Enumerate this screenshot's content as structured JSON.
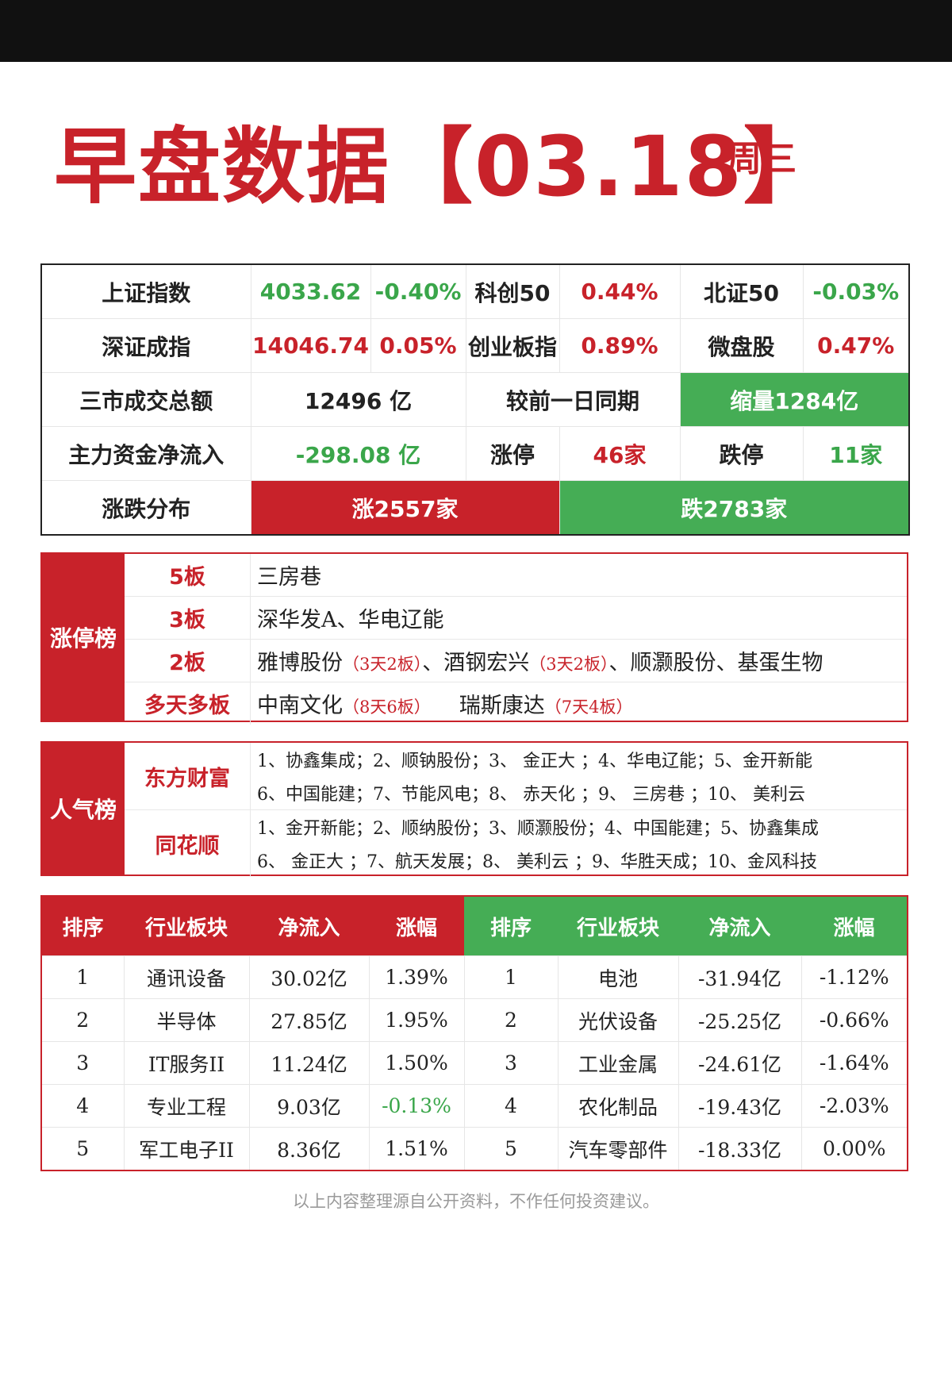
{
  "header": {
    "title": "早盘数据【03.18】",
    "weekday": "周三"
  },
  "market": {
    "row1": [
      {
        "label": "上证指数",
        "value": "4033.62",
        "change": "-0.40%"
      },
      {
        "label": "科创50",
        "change": "0.44%"
      },
      {
        "label": "北证50",
        "change": "-0.03%"
      }
    ],
    "row2": [
      {
        "label": "深证成指",
        "value": "14046.74",
        "change": "0.05%"
      },
      {
        "label": "创业板指",
        "change": "0.89%"
      },
      {
        "label": "微盘股",
        "change": "0.47%"
      }
    ],
    "turnover": {
      "label": "三市成交总额",
      "value": "12496 亿",
      "compare_label": "较前一日同期",
      "compare_value": "缩量1284亿"
    },
    "flow": {
      "label": "主力资金净流入",
      "value": "-298.08 亿",
      "up_label": "涨停",
      "up_value": "46家",
      "down_label": "跌停",
      "down_value": "11家"
    },
    "distribution": {
      "label": "涨跌分布",
      "up": "涨2557家",
      "down": "跌2783家"
    },
    "colors": {
      "up": "#c8222a",
      "down": "#3aa64a"
    }
  },
  "limit_up": {
    "title": "涨停榜",
    "rows": [
      {
        "label": "5板",
        "items": "三房巷"
      },
      {
        "label": "3板",
        "items": "深华发A、华电辽能"
      },
      {
        "label": "2板",
        "a": "雅博股份",
        "a_note": "（3天2板）",
        "sep1": "、",
        "b": "酒钢宏兴",
        "b_note": "（3天2板）",
        "rest": "、顺灏股份、基蛋生物"
      },
      {
        "label": "多天多板",
        "a": "中南文化",
        "a_note": "（8天6板）",
        "b": "瑞斯康达",
        "b_note": "（7天4板）"
      }
    ]
  },
  "popularity": {
    "title": "人气榜",
    "groups": [
      {
        "label": "东方财富",
        "lines": [
          "1、协鑫集成；2、顺钠股份；3、 金正大 ；4、华电辽能；5、金开新能",
          "6、中国能建；7、节能风电；8、 赤天化 ；9、 三房巷 ；10、 美利云"
        ]
      },
      {
        "label": "同花顺",
        "lines": [
          "1、金开新能；2、顺纳股份；3、顺灏股份；4、中国能建；5、协鑫集成",
          "6、 金正大 ；7、航天发展；8、 美利云 ；9、华胜天成；10、金风科技"
        ]
      }
    ]
  },
  "sectors": {
    "headers": [
      "排序",
      "行业板块",
      "净流入",
      "涨幅"
    ],
    "inflow": [
      {
        "rank": "1",
        "name": "通讯设备",
        "flow": "30.02亿",
        "pct": "1.39%"
      },
      {
        "rank": "2",
        "name": "半导体",
        "flow": "27.85亿",
        "pct": "1.95%"
      },
      {
        "rank": "3",
        "name": "IT服务II",
        "flow": "11.24亿",
        "pct": "1.50%"
      },
      {
        "rank": "4",
        "name": "专业工程",
        "flow": "9.03亿",
        "pct": "-0.13%"
      },
      {
        "rank": "5",
        "name": "军工电子II",
        "flow": "8.36亿",
        "pct": "1.51%"
      }
    ],
    "outflow": [
      {
        "rank": "1",
        "name": "电池",
        "flow": "-31.94亿",
        "pct": "-1.12%"
      },
      {
        "rank": "2",
        "name": "光伏设备",
        "flow": "-25.25亿",
        "pct": "-0.66%"
      },
      {
        "rank": "3",
        "name": "工业金属",
        "flow": "-24.61亿",
        "pct": "-1.64%"
      },
      {
        "rank": "4",
        "name": "农化制品",
        "flow": "-19.43亿",
        "pct": "-2.03%"
      },
      {
        "rank": "5",
        "name": "汽车零部件",
        "flow": "-18.33亿",
        "pct": "0.00%"
      }
    ]
  },
  "footer": "以上内容整理源自公开资料，不作任何投资建议。"
}
